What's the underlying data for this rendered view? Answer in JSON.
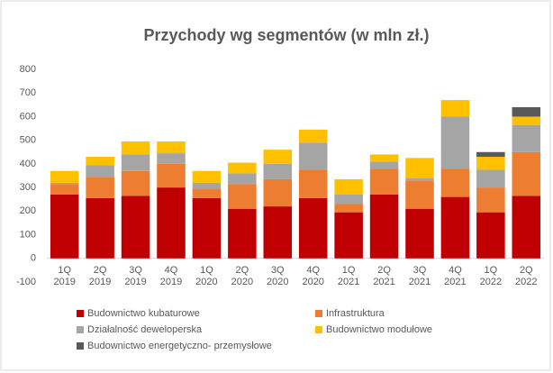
{
  "chart_data": {
    "type": "stacked_bar",
    "title": "Przychody wg segmentów (w mln zł.)",
    "categories": [
      "1Q 2019",
      "2Q 2019",
      "3Q 2019",
      "4Q 2019",
      "1Q 2020",
      "2Q 2020",
      "3Q 2020",
      "4Q 2020",
      "1Q 2021",
      "2Q 2021",
      "3Q 2021",
      "4Q 2021",
      "1Q 2022",
      "2Q 2022"
    ],
    "series": [
      {
        "name": "Budownictwo kubaturowe",
        "color": "#c00000",
        "values": [
          270,
          255,
          265,
          300,
          255,
          210,
          220,
          255,
          195,
          270,
          210,
          260,
          195,
          265
        ]
      },
      {
        "name": "Infrastruktura",
        "color": "#ed7d31",
        "values": [
          45,
          90,
          105,
          100,
          40,
          105,
          115,
          120,
          35,
          110,
          120,
          120,
          105,
          185
        ]
      },
      {
        "name": "Działalność deweloperska",
        "color": "#a5a5a5",
        "values": [
          5,
          50,
          70,
          45,
          25,
          45,
          65,
          115,
          40,
          30,
          10,
          220,
          75,
          115
        ]
      },
      {
        "name": "Budownictwo modułowe",
        "color": "#ffc000",
        "values": [
          50,
          35,
          55,
          50,
          50,
          45,
          60,
          55,
          65,
          30,
          85,
          70,
          55,
          35
        ]
      },
      {
        "name": "Budownictwo energetyczno- przemysłowe",
        "color": "#595959",
        "values": [
          null,
          null,
          null,
          null,
          null,
          null,
          null,
          null,
          null,
          null,
          null,
          null,
          20,
          40
        ]
      }
    ],
    "ylim": [
      -100,
      800
    ],
    "yticks": [
      -100,
      0,
      100,
      200,
      300,
      400,
      500,
      600,
      700,
      800
    ],
    "grid": false
  }
}
